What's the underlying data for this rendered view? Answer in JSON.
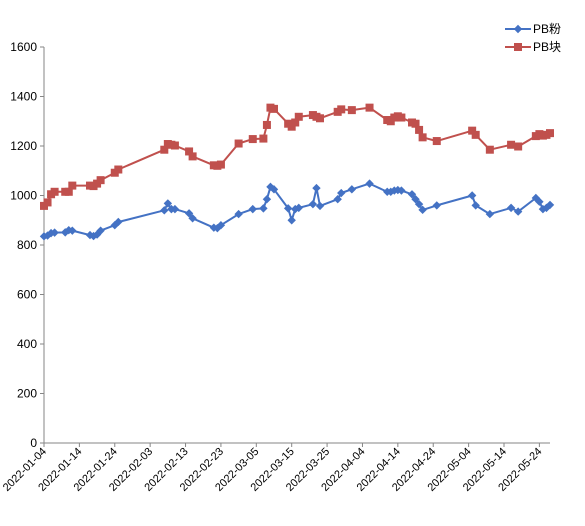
{
  "chart_data": {
    "type": "line",
    "xlabel": "",
    "ylabel": "",
    "ylim": [
      0,
      1600
    ],
    "yticks": [
      0,
      200,
      400,
      600,
      800,
      1000,
      1200,
      1400,
      1600
    ],
    "xticks": [
      "2022-01-04",
      "2022-01-14",
      "2022-01-24",
      "2022-02-03",
      "2022-02-13",
      "2022-02-23",
      "2022-03-05",
      "2022-03-15",
      "2022-03-25",
      "2022-04-04",
      "2022-04-14",
      "2022-04-24",
      "2022-05-04",
      "2022-05-14",
      "2022-05-24"
    ],
    "xlim": [
      "2022-01-04",
      "2022-05-27"
    ],
    "grid": false,
    "legend_position": "top-right",
    "series": [
      {
        "name": "PB粉",
        "color": "#4472C4",
        "marker": "diamond",
        "points": [
          [
            "2022-01-04",
            835
          ],
          [
            "2022-01-05",
            838
          ],
          [
            "2022-01-06",
            848
          ],
          [
            "2022-01-07",
            850
          ],
          [
            "2022-01-10",
            851
          ],
          [
            "2022-01-11",
            860
          ],
          [
            "2022-01-12",
            858
          ],
          [
            "2022-01-17",
            840
          ],
          [
            "2022-01-18",
            836
          ],
          [
            "2022-01-19",
            842
          ],
          [
            "2022-01-20",
            858
          ],
          [
            "2022-01-24",
            880
          ],
          [
            "2022-01-25",
            893
          ],
          [
            "2022-02-07",
            940
          ],
          [
            "2022-02-08",
            968
          ],
          [
            "2022-02-09",
            945
          ],
          [
            "2022-02-10",
            945
          ],
          [
            "2022-02-14",
            928
          ],
          [
            "2022-02-15",
            908
          ],
          [
            "2022-02-21",
            870
          ],
          [
            "2022-02-22",
            868
          ],
          [
            "2022-02-23",
            880
          ],
          [
            "2022-02-28",
            925
          ],
          [
            "2022-03-04",
            945
          ],
          [
            "2022-03-07",
            948
          ],
          [
            "2022-03-08",
            985
          ],
          [
            "2022-03-09",
            1035
          ],
          [
            "2022-03-10",
            1025
          ],
          [
            "2022-03-14",
            948
          ],
          [
            "2022-03-15",
            900
          ],
          [
            "2022-03-16",
            945
          ],
          [
            "2022-03-17",
            950
          ],
          [
            "2022-03-21",
            965
          ],
          [
            "2022-03-22",
            1030
          ],
          [
            "2022-03-23",
            958
          ],
          [
            "2022-03-28",
            985
          ],
          [
            "2022-03-29",
            1010
          ],
          [
            "2022-04-01",
            1025
          ],
          [
            "2022-04-06",
            1048
          ],
          [
            "2022-04-11",
            1015
          ],
          [
            "2022-04-12",
            1015
          ],
          [
            "2022-04-13",
            1020
          ],
          [
            "2022-04-14",
            1022
          ],
          [
            "2022-04-15",
            1020
          ],
          [
            "2022-04-18",
            1005
          ],
          [
            "2022-04-19",
            985
          ],
          [
            "2022-04-20",
            965
          ],
          [
            "2022-04-21",
            942
          ],
          [
            "2022-04-25",
            960
          ],
          [
            "2022-05-05",
            1000
          ],
          [
            "2022-05-06",
            960
          ],
          [
            "2022-05-10",
            925
          ],
          [
            "2022-05-16",
            950
          ],
          [
            "2022-05-18",
            935
          ],
          [
            "2022-05-23",
            990
          ],
          [
            "2022-05-24",
            975
          ],
          [
            "2022-05-25",
            945
          ],
          [
            "2022-05-26",
            950
          ],
          [
            "2022-05-27",
            962
          ]
        ]
      },
      {
        "name": "PB块",
        "color": "#C0504D",
        "marker": "square",
        "points": [
          [
            "2022-01-04",
            958
          ],
          [
            "2022-01-05",
            972
          ],
          [
            "2022-01-06",
            1005
          ],
          [
            "2022-01-07",
            1015
          ],
          [
            "2022-01-10",
            1015
          ],
          [
            "2022-01-11",
            1015
          ],
          [
            "2022-01-12",
            1040
          ],
          [
            "2022-01-17",
            1040
          ],
          [
            "2022-01-18",
            1038
          ],
          [
            "2022-01-19",
            1048
          ],
          [
            "2022-01-20",
            1062
          ],
          [
            "2022-01-24",
            1092
          ],
          [
            "2022-01-25",
            1105
          ],
          [
            "2022-02-07",
            1185
          ],
          [
            "2022-02-08",
            1208
          ],
          [
            "2022-02-09",
            1205
          ],
          [
            "2022-02-10",
            1202
          ],
          [
            "2022-02-14",
            1178
          ],
          [
            "2022-02-15",
            1158
          ],
          [
            "2022-02-21",
            1122
          ],
          [
            "2022-02-22",
            1120
          ],
          [
            "2022-02-23",
            1125
          ],
          [
            "2022-02-28",
            1210
          ],
          [
            "2022-03-04",
            1228
          ],
          [
            "2022-03-07",
            1230
          ],
          [
            "2022-03-08",
            1285
          ],
          [
            "2022-03-09",
            1355
          ],
          [
            "2022-03-10",
            1350
          ],
          [
            "2022-03-14",
            1290
          ],
          [
            "2022-03-15",
            1278
          ],
          [
            "2022-03-16",
            1295
          ],
          [
            "2022-03-17",
            1318
          ],
          [
            "2022-03-21",
            1325
          ],
          [
            "2022-03-22",
            1318
          ],
          [
            "2022-03-23",
            1312
          ],
          [
            "2022-03-28",
            1338
          ],
          [
            "2022-03-29",
            1348
          ],
          [
            "2022-04-01",
            1345
          ],
          [
            "2022-04-06",
            1355
          ],
          [
            "2022-04-11",
            1305
          ],
          [
            "2022-04-12",
            1300
          ],
          [
            "2022-04-13",
            1315
          ],
          [
            "2022-04-14",
            1320
          ],
          [
            "2022-04-15",
            1315
          ],
          [
            "2022-04-18",
            1295
          ],
          [
            "2022-04-19",
            1290
          ],
          [
            "2022-04-20",
            1265
          ],
          [
            "2022-04-21",
            1235
          ],
          [
            "2022-04-25",
            1220
          ],
          [
            "2022-05-05",
            1262
          ],
          [
            "2022-05-06",
            1245
          ],
          [
            "2022-05-10",
            1185
          ],
          [
            "2022-05-16",
            1205
          ],
          [
            "2022-05-18",
            1198
          ],
          [
            "2022-05-23",
            1240
          ],
          [
            "2022-05-24",
            1248
          ],
          [
            "2022-05-25",
            1242
          ],
          [
            "2022-05-26",
            1245
          ],
          [
            "2022-05-27",
            1252
          ]
        ]
      }
    ]
  }
}
